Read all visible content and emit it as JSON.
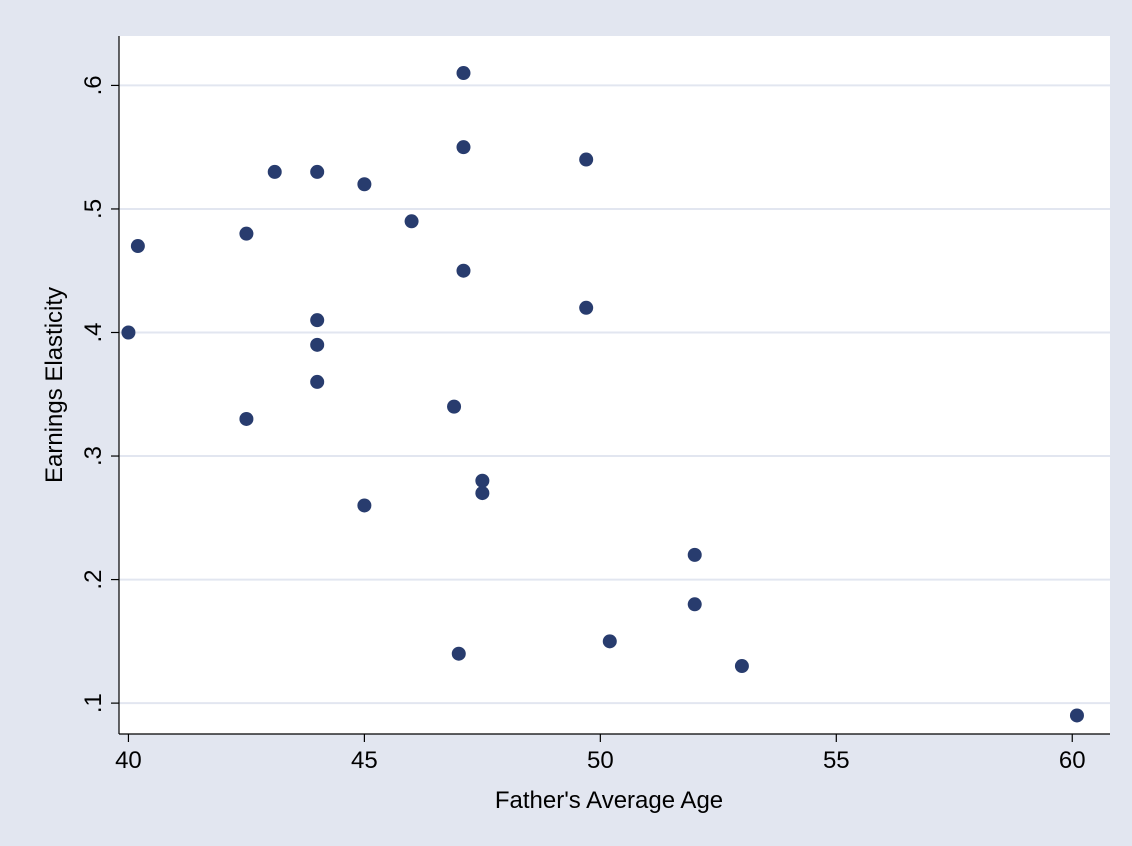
{
  "chart_data": {
    "type": "scatter",
    "title": "",
    "xlabel": "Father's Average Age",
    "ylabel": "Earnings Elasticity",
    "xlim": [
      39.8,
      60.8
    ],
    "ylim": [
      0.075,
      0.64
    ],
    "xticks": [
      40,
      45,
      50,
      55,
      60
    ],
    "xtick_labels": [
      "40",
      "45",
      "50",
      "55",
      "60"
    ],
    "yticks": [
      0.1,
      0.2,
      0.3,
      0.4,
      0.5,
      0.6
    ],
    "ytick_labels": [
      ".1",
      ".2",
      ".3",
      ".4",
      ".5",
      ".6"
    ],
    "grid": "horizontal",
    "legend": "none",
    "colors": {
      "outer_background": "#e2e6f0",
      "plot_background": "#ffffff",
      "gridline": "#e2e6f0",
      "marker": "#283c6e"
    },
    "points": [
      {
        "x": 40.0,
        "y": 0.4
      },
      {
        "x": 40.2,
        "y": 0.47
      },
      {
        "x": 42.5,
        "y": 0.48
      },
      {
        "x": 42.5,
        "y": 0.33
      },
      {
        "x": 43.1,
        "y": 0.53
      },
      {
        "x": 44.0,
        "y": 0.53
      },
      {
        "x": 44.0,
        "y": 0.41
      },
      {
        "x": 44.0,
        "y": 0.39
      },
      {
        "x": 44.0,
        "y": 0.36
      },
      {
        "x": 45.0,
        "y": 0.52
      },
      {
        "x": 45.0,
        "y": 0.26
      },
      {
        "x": 46.0,
        "y": 0.49
      },
      {
        "x": 46.9,
        "y": 0.34
      },
      {
        "x": 47.0,
        "y": 0.14
      },
      {
        "x": 47.1,
        "y": 0.61
      },
      {
        "x": 47.1,
        "y": 0.55
      },
      {
        "x": 47.1,
        "y": 0.45
      },
      {
        "x": 47.5,
        "y": 0.28
      },
      {
        "x": 47.5,
        "y": 0.27
      },
      {
        "x": 49.7,
        "y": 0.54
      },
      {
        "x": 49.7,
        "y": 0.42
      },
      {
        "x": 50.2,
        "y": 0.15
      },
      {
        "x": 52.0,
        "y": 0.22
      },
      {
        "x": 52.0,
        "y": 0.18
      },
      {
        "x": 53.0,
        "y": 0.13
      },
      {
        "x": 60.1,
        "y": 0.09
      }
    ]
  }
}
